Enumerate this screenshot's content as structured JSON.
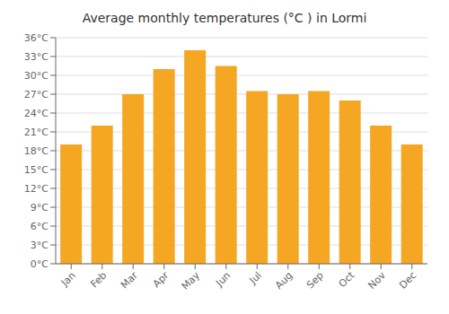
{
  "chart_data": {
    "type": "bar",
    "title": "Average monthly temperatures (°C ) in Lormi",
    "categories": [
      "Jan",
      "Feb",
      "Mar",
      "Apr",
      "May",
      "Jun",
      "Jul",
      "Aug",
      "Sep",
      "Oct",
      "Nov",
      "Dec"
    ],
    "values": [
      19,
      22,
      27,
      31,
      34,
      31.5,
      27.5,
      27,
      27.5,
      26,
      22,
      19
    ],
    "color": "#F5A623",
    "ylim": [
      0,
      36
    ],
    "yticks": [
      {
        "value": 0,
        "label": "0°C"
      },
      {
        "value": 3,
        "label": "3°C"
      },
      {
        "value": 6,
        "label": "6°C"
      },
      {
        "value": 9,
        "label": "9°C"
      },
      {
        "value": 12,
        "label": "12°C"
      },
      {
        "value": 15,
        "label": "15°C"
      },
      {
        "value": 18,
        "label": "18°C"
      },
      {
        "value": 21,
        "label": "21°C"
      },
      {
        "value": 24,
        "label": "24°C"
      },
      {
        "value": 27,
        "label": "27°C"
      },
      {
        "value": 30,
        "label": "30°C"
      },
      {
        "value": 33,
        "label": "33°C"
      },
      {
        "value": 36,
        "label": "36°C"
      }
    ],
    "grid": true
  }
}
